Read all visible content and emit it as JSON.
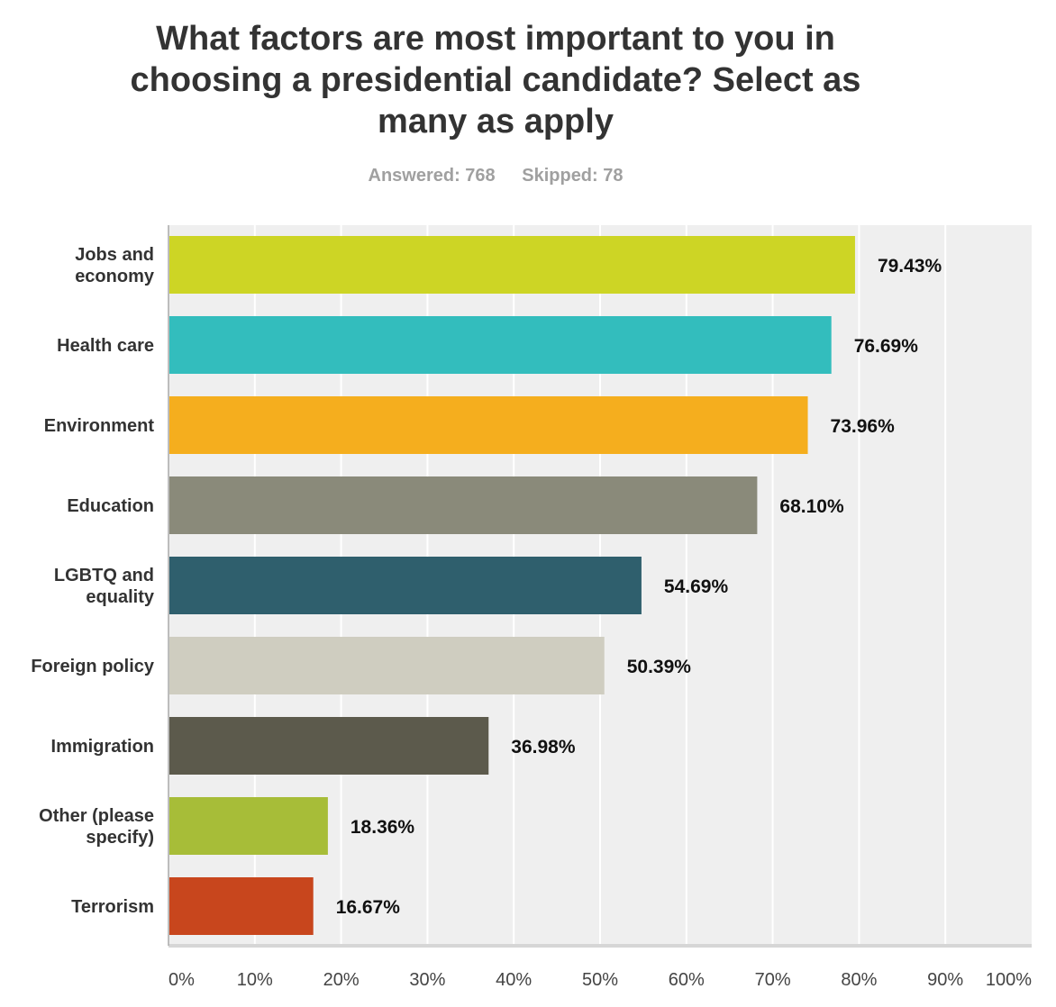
{
  "chart_data": {
    "type": "bar",
    "orientation": "horizontal",
    "title": "What factors are most important to you in choosing a presidential candidate? Select as many as apply",
    "answered_label": "Answered: 768",
    "skipped_label": "Skipped: 78",
    "categories": [
      [
        "Jobs and",
        "economy"
      ],
      [
        "Health care"
      ],
      [
        "Environment"
      ],
      [
        "Education"
      ],
      [
        "LGBTQ and",
        "equality"
      ],
      [
        "Foreign policy"
      ],
      [
        "Immigration"
      ],
      [
        "Other (please",
        "specify)"
      ],
      [
        "Terrorism"
      ]
    ],
    "values": [
      79.43,
      76.69,
      73.96,
      68.1,
      54.69,
      50.39,
      36.98,
      18.36,
      16.67
    ],
    "value_labels": [
      "79.43%",
      "76.69%",
      "73.96%",
      "68.10%",
      "54.69%",
      "50.39%",
      "36.98%",
      "18.36%",
      "16.67%"
    ],
    "colors": [
      "#cdd525",
      "#33bdbd",
      "#f5ae1e",
      "#8a8a7a",
      "#2f5f6d",
      "#cfcdc0",
      "#5c5a4c",
      "#a7bd38",
      "#c8461d"
    ],
    "xlim": [
      0,
      100
    ],
    "xticks": [
      "0%",
      "10%",
      "20%",
      "30%",
      "40%",
      "50%",
      "60%",
      "70%",
      "80%",
      "90%",
      "100%"
    ],
    "grid": true
  }
}
